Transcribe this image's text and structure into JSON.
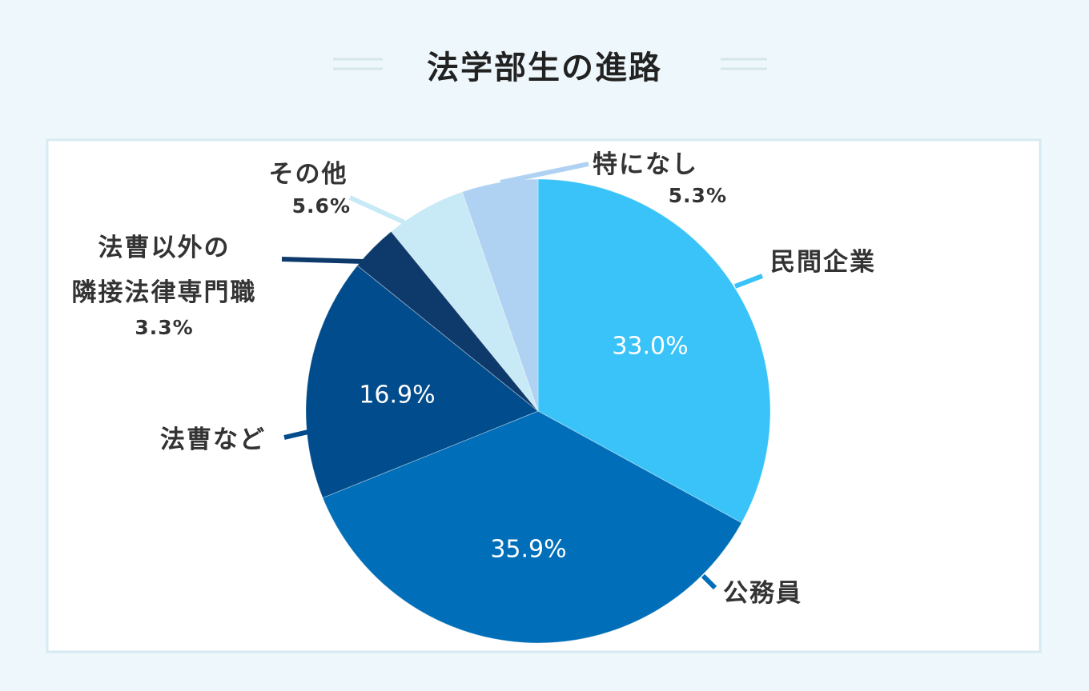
{
  "chart_data": {
    "type": "pie",
    "title": "法学部生の進路",
    "categories": [
      "民間企業",
      "公務員",
      "法曹など",
      "法曹以外の\n隣接法律専門職",
      "その他",
      "特になし"
    ],
    "values": [
      33.0,
      35.9,
      16.9,
      3.3,
      5.6,
      5.3
    ],
    "value_labels": [
      "33.0%",
      "35.9%",
      "16.9%",
      "3.3%",
      "5.6%",
      "5.3%"
    ],
    "colors": [
      "#3ac3f8",
      "#006eb8",
      "#004c8c",
      "#0e3a6b",
      "#c8e9f6",
      "#b0d2f2"
    ]
  }
}
